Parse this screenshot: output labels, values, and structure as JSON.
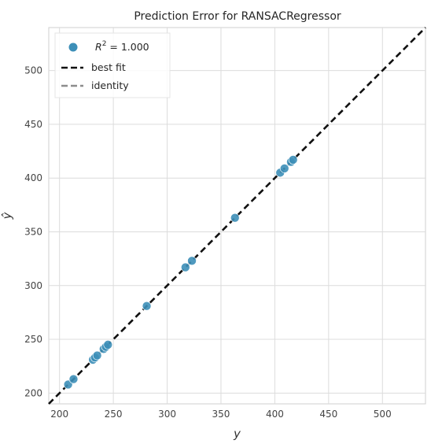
{
  "chart_data": {
    "type": "scatter",
    "title": "Prediction Error for RANSACRegressor",
    "xlabel": "y",
    "ylabel": "ŷ",
    "xlim": [
      190,
      540
    ],
    "ylim": [
      190,
      540
    ],
    "xticks": [
      200,
      250,
      300,
      350,
      400,
      450,
      500
    ],
    "yticks": [
      200,
      250,
      300,
      350,
      400,
      450,
      500
    ],
    "grid": true,
    "legend_position": "top-left",
    "legend": [
      {
        "label_prefix": "R",
        "label_sup": "2",
        "label_suffix": " = 1.000",
        "style": "marker",
        "color": "#3d8fb8"
      },
      {
        "label": "best fit",
        "style": "dashed",
        "color": "#111111"
      },
      {
        "label": "identity",
        "style": "dashed",
        "color": "#8c8c8c"
      }
    ],
    "colors": {
      "points": "#3d8fb8",
      "best_fit": "#111111",
      "identity": "#8c8c8c"
    },
    "series": [
      {
        "name": "R^2 = 1.000",
        "points": [
          {
            "x": 208,
            "y": 208
          },
          {
            "x": 213,
            "y": 213
          },
          {
            "x": 231,
            "y": 231
          },
          {
            "x": 233,
            "y": 233
          },
          {
            "x": 235,
            "y": 235
          },
          {
            "x": 241,
            "y": 241
          },
          {
            "x": 243,
            "y": 243
          },
          {
            "x": 245,
            "y": 245
          },
          {
            "x": 281,
            "y": 281
          },
          {
            "x": 317,
            "y": 317
          },
          {
            "x": 323,
            "y": 323
          },
          {
            "x": 363,
            "y": 363
          },
          {
            "x": 405,
            "y": 405
          },
          {
            "x": 409,
            "y": 409
          },
          {
            "x": 415,
            "y": 415
          },
          {
            "x": 417,
            "y": 417
          }
        ]
      }
    ],
    "lines": [
      {
        "name": "best fit",
        "slope": 1.0,
        "intercept": 0.0
      },
      {
        "name": "identity",
        "slope": 1.0,
        "intercept": 0.0
      }
    ]
  }
}
